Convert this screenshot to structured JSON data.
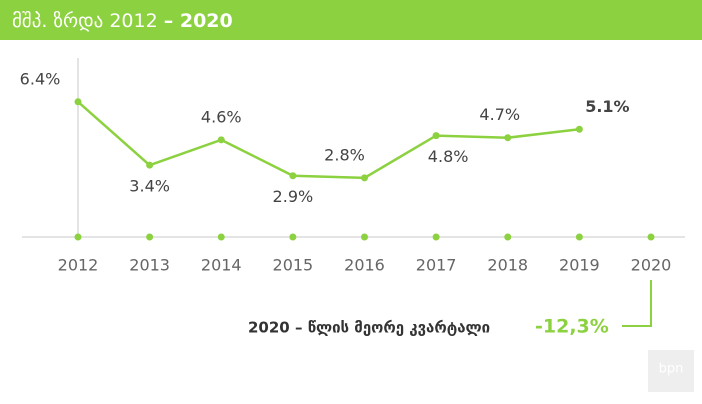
{
  "chart_data": {
    "type": "line",
    "title": "მშპ. ზრდა 2012",
    "title_emphasis": "– 2020",
    "categories": [
      "2012",
      "2013",
      "2014",
      "2015",
      "2016",
      "2017",
      "2018",
      "2019",
      "2020"
    ],
    "values": [
      6.4,
      3.4,
      4.6,
      2.9,
      2.8,
      4.8,
      4.7,
      5.1,
      null
    ],
    "value_labels": [
      "6.4%",
      "3.4%",
      "4.6%",
      "2.9%",
      "2.8%",
      "4.8%",
      "4.7%",
      "5.1%",
      null
    ],
    "color": "#8cd13f",
    "ylim": [
      0,
      8
    ],
    "annotation": {
      "text": "2020 – წლის მეორე კვარტალი",
      "value": -12.3,
      "value_label": "-12,3%"
    },
    "logo": "bpn"
  }
}
